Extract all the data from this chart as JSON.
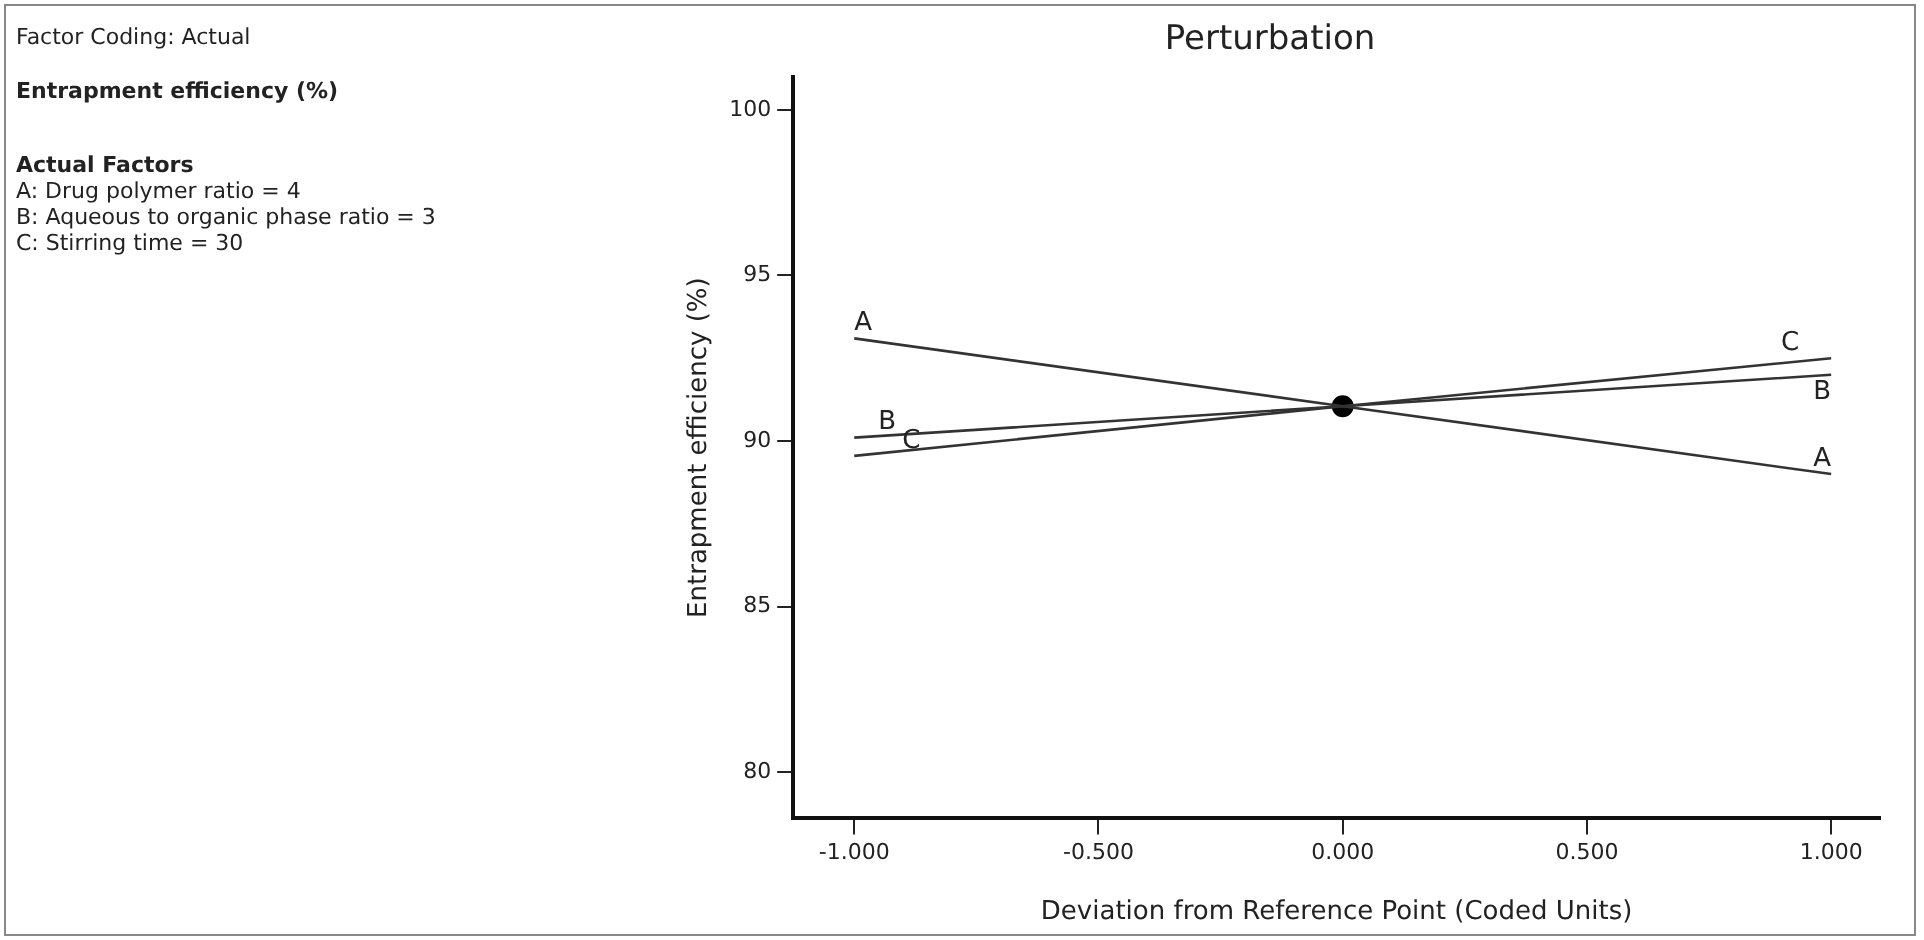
{
  "chart_data": {
    "type": "line",
    "title": "Perturbation",
    "xlabel": "Deviation from Reference Point (Coded Units)",
    "ylabel": "Entrapment efficiency (%)",
    "annotations": [
      "Factor Coding: Actual",
      "Entrapment efficiency (%)",
      "Actual Factors",
      "A: Drug polymer ratio = 4",
      "B: Aqueous to organic phase ratio = 3",
      "C: Stirring time = 30"
    ],
    "x": [
      -1,
      0,
      1
    ],
    "series": [
      {
        "name": "A",
        "color": "#333333",
        "values": [
          93.1,
          91.05,
          89.0
        ]
      },
      {
        "name": "B",
        "color": "#333333",
        "values": [
          90.1,
          91.05,
          92.0
        ]
      },
      {
        "name": "C",
        "color": "#333333",
        "values": [
          89.55,
          91.05,
          92.5
        ]
      },
      {
        "type": "scatter",
        "color": "#000000",
        "x": [
          0
        ],
        "values": [
          91.05
        ],
        "marker": "circle"
      }
    ],
    "marker": "none",
    "line_style": "solid",
    "grid": false,
    "legend": false,
    "xlim": [
      -1.125,
      1.1
    ],
    "xticks": [
      {
        "value": -1,
        "label": "-1.000"
      },
      {
        "value": -0.5,
        "label": "-0.500"
      },
      {
        "value": 0,
        "label": "0.000"
      },
      {
        "value": 0.5,
        "label": "0.500"
      },
      {
        "value": 1,
        "label": "1.000"
      }
    ],
    "ylim": [
      78.6,
      101
    ],
    "yticks": [
      80,
      85,
      90,
      95,
      100
    ]
  }
}
